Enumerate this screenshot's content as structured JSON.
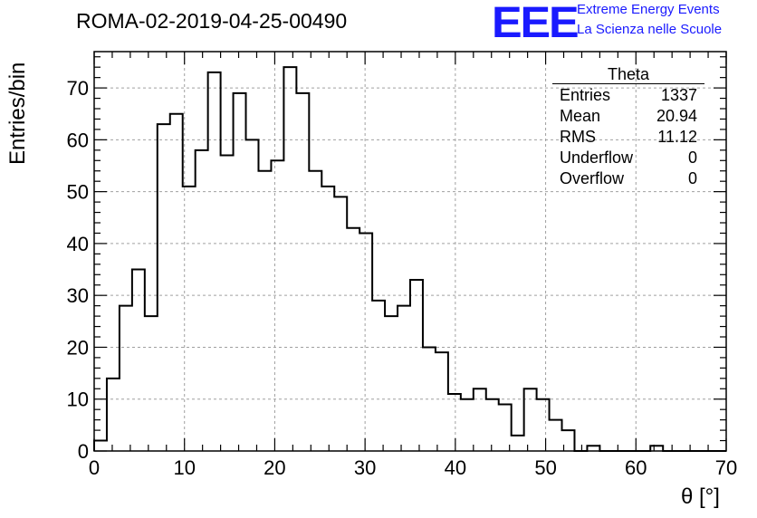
{
  "chart_data": {
    "type": "histogram",
    "title": "ROMA-02-2019-04-25-00490",
    "xlabel": "θ [°]",
    "ylabel": "Entries/bin",
    "xlim": [
      0,
      70
    ],
    "ylim": [
      0,
      77
    ],
    "bin_width": 1.4,
    "x_ticks": [
      0,
      10,
      20,
      30,
      40,
      50,
      60,
      70
    ],
    "y_ticks": [
      0,
      10,
      20,
      30,
      40,
      50,
      60,
      70
    ],
    "grid": true,
    "counts": [
      2,
      14,
      28,
      35,
      26,
      63,
      65,
      51,
      58,
      73,
      57,
      69,
      60,
      54,
      56,
      74,
      69,
      54,
      51,
      49,
      43,
      42,
      29,
      26,
      28,
      33,
      20,
      19,
      11,
      10,
      12,
      10,
      9,
      3,
      12,
      10,
      6,
      4,
      0,
      1,
      0,
      0,
      0,
      0,
      1,
      0,
      0,
      0,
      0,
      0
    ],
    "stats_box": {
      "title": "Theta",
      "rows": [
        {
          "label": "Entries",
          "value": "1337"
        },
        {
          "label": "Mean",
          "value": "20.94"
        },
        {
          "label": "RMS",
          "value": "11.12"
        },
        {
          "label": "Underflow",
          "value": "0"
        },
        {
          "label": "Overflow",
          "value": "0"
        }
      ]
    }
  },
  "logo": {
    "mark": "EEE",
    "line1": "Extreme Energy Events",
    "line2": "La Scienza nelle Scuole"
  },
  "colors": {
    "logo": "#1a1aff",
    "line": "#000000",
    "grid": "#a0a0a0"
  }
}
